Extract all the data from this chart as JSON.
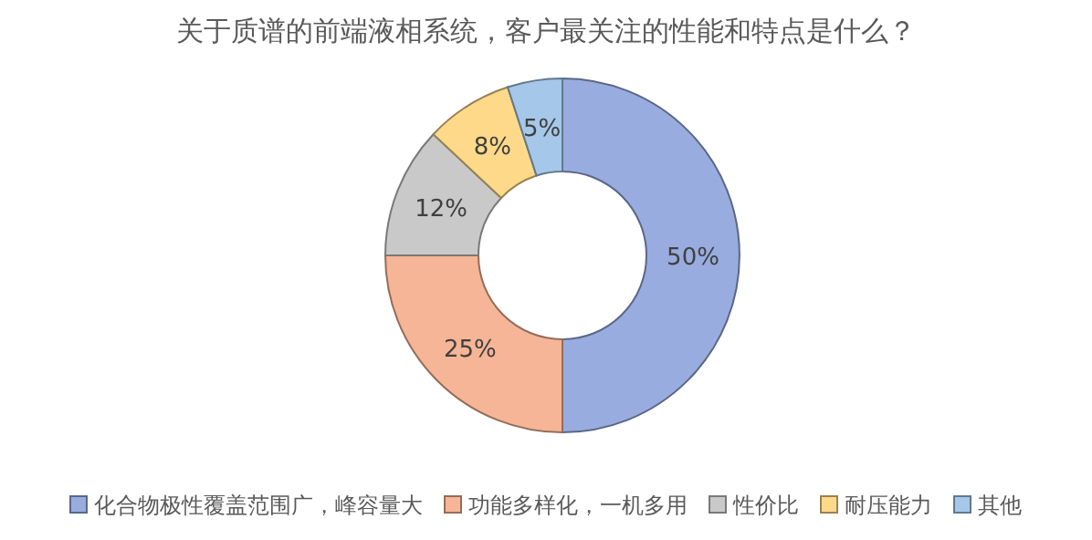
{
  "chart_data": {
    "type": "donut",
    "title": "关于质谱的前端液相系统，客户最关注的性能和特点是什么？",
    "categories": [
      "化合物极性覆盖范围广，峰容量大",
      "功能多样化，一机多用",
      "性价比",
      "耐压能力",
      "其他"
    ],
    "values": [
      50,
      25,
      12,
      8,
      5
    ],
    "colors": [
      "#98acdf",
      "#f5b596",
      "#c9c9c9",
      "#fed98a",
      "#a5c8ea"
    ],
    "value_labels": [
      "50%",
      "25%",
      "12%",
      "8%",
      "5%"
    ],
    "legend": "bottom"
  }
}
